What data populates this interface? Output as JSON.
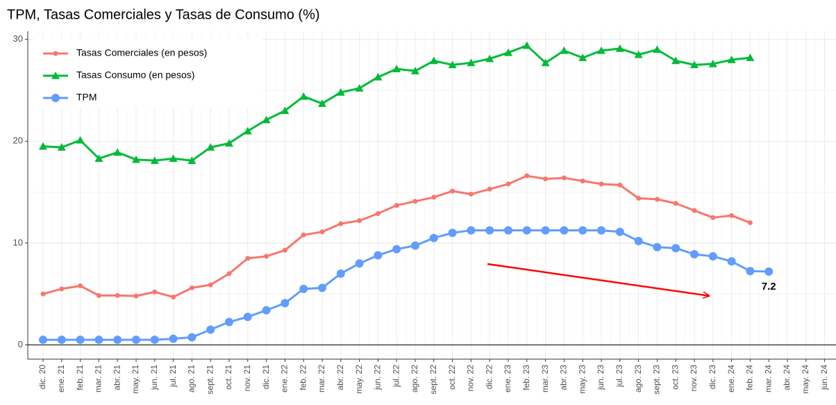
{
  "chart_data": {
    "type": "line",
    "title": "TPM, Tasas Comerciales y Tasas de Consumo (%)",
    "categories": [
      "dic. 20",
      "ene. 21",
      "feb. 21",
      "mar. 21",
      "abr. 21",
      "may. 21",
      "jun. 21",
      "jul. 21",
      "ago. 21",
      "sept. 21",
      "oct. 21",
      "nov. 21",
      "dic. 21",
      "ene. 22",
      "feb. 22",
      "mar. 22",
      "abr. 22",
      "may. 22",
      "jun. 22",
      "jul. 22",
      "ago. 22",
      "sept. 22",
      "oct. 22",
      "nov. 22",
      "dic. 22",
      "ene. 23",
      "feb. 23",
      "mar. 23",
      "abr. 23",
      "may. 23",
      "jun. 23",
      "jul. 23",
      "ago. 23",
      "sept. 23",
      "oct. 23",
      "nov. 23",
      "dic. 23",
      "ene. 24",
      "feb. 24",
      "mar. 24",
      "abr. 24",
      "may. 24",
      "jun. 24"
    ],
    "series": [
      {
        "name": "Tasas Comerciales (en pesos)",
        "color": "#f8766d",
        "marker": "circle-small",
        "values": [
          5.0,
          5.5,
          5.8,
          4.85,
          4.85,
          4.8,
          5.2,
          4.7,
          5.6,
          5.9,
          7.0,
          8.5,
          8.7,
          9.3,
          10.8,
          11.1,
          11.9,
          12.2,
          12.9,
          13.7,
          14.1,
          14.5,
          15.1,
          14.8,
          15.3,
          15.8,
          16.6,
          16.3,
          16.4,
          16.1,
          15.8,
          15.7,
          14.4,
          14.3,
          13.9,
          13.2,
          12.5,
          12.7,
          12.0,
          null,
          null,
          null,
          null
        ]
      },
      {
        "name": "Tasas Consumo (en pesos)",
        "color": "#00ba38",
        "marker": "triangle",
        "values": [
          19.5,
          19.4,
          20.1,
          18.3,
          18.9,
          18.2,
          18.1,
          18.3,
          18.1,
          19.4,
          19.8,
          21.0,
          22.1,
          23.0,
          24.4,
          23.7,
          24.8,
          25.2,
          26.3,
          27.1,
          26.9,
          27.9,
          27.5,
          27.7,
          28.1,
          28.7,
          29.4,
          27.7,
          28.9,
          28.2,
          28.9,
          29.1,
          28.5,
          29.0,
          27.9,
          27.5,
          27.6,
          28.0,
          28.2,
          null,
          null,
          null,
          null
        ]
      },
      {
        "name": "TPM",
        "color": "#619cff",
        "marker": "circle",
        "values": [
          0.5,
          0.5,
          0.5,
          0.5,
          0.5,
          0.5,
          0.5,
          0.6,
          0.75,
          1.5,
          2.25,
          2.75,
          3.4,
          4.1,
          5.5,
          5.6,
          7.0,
          8.0,
          8.8,
          9.4,
          9.75,
          10.5,
          11.0,
          11.25,
          11.25,
          11.25,
          11.25,
          11.25,
          11.25,
          11.25,
          11.25,
          11.1,
          10.2,
          9.6,
          9.5,
          8.9,
          8.7,
          8.2,
          7.25,
          7.2,
          null,
          null,
          null
        ]
      }
    ],
    "ylim": [
      -1.4,
      30.8
    ],
    "yticks": [
      0,
      10,
      20,
      30
    ],
    "grid": true,
    "legend": "top-left"
  }
}
